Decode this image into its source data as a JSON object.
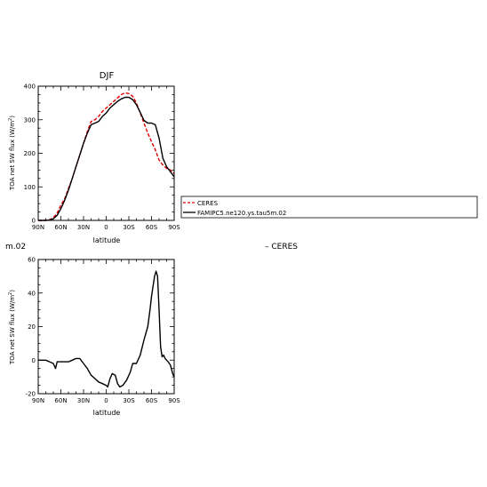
{
  "panel_top": {
    "title": "DJF",
    "xlabel": "latitude",
    "ylabel_main": "TOA net SW flux (W/m",
    "ylabel_sup": "2",
    "ylabel_end": ")"
  },
  "panel_bottom": {
    "corner_text": "m.02",
    "xlabel": "latitude",
    "ylabel_main": "TOA net SW flux (W/m",
    "ylabel_sup": "2",
    "ylabel_end": ")"
  },
  "legend": {
    "entries": [
      "CERES",
      "FAMIPC5.ne120.ys.tau5m.02"
    ]
  },
  "stray_legend_text": "– CERES",
  "colors": {
    "ceres": "#e00000",
    "model": "#000000"
  },
  "chart_data": [
    {
      "type": "line",
      "title": "DJF",
      "xlabel": "latitude",
      "ylabel": "TOA net SW flux (W/m2)",
      "xlim": [
        -90,
        90
      ],
      "ylim": [
        0,
        400
      ],
      "x_ticks": [
        -90,
        -60,
        -30,
        0,
        30,
        60,
        90
      ],
      "x_tick_labels": [
        "90N",
        "60N",
        "30N",
        "0",
        "30S",
        "60S",
        "90S"
      ],
      "y_ticks": [
        0,
        100,
        200,
        300,
        400
      ],
      "y_tick_labels": [
        "0",
        "100",
        "200",
        "300",
        "400"
      ],
      "legend_position": "right",
      "series": [
        {
          "name": "CERES",
          "style": "dashed",
          "x": [
            -90,
            -80,
            -75,
            -70,
            -65,
            -60,
            -55,
            -50,
            -45,
            -40,
            -35,
            -30,
            -25,
            -20,
            -15,
            -10,
            -5,
            0,
            5,
            10,
            15,
            20,
            25,
            30,
            35,
            40,
            45,
            50,
            55,
            60,
            65,
            70,
            75,
            80,
            85,
            90
          ],
          "values": [
            0,
            0,
            2,
            8,
            22,
            45,
            65,
            95,
            125,
            160,
            195,
            230,
            265,
            295,
            300,
            310,
            325,
            335,
            345,
            355,
            365,
            375,
            380,
            378,
            370,
            350,
            320,
            290,
            260,
            235,
            210,
            180,
            165,
            155,
            150,
            140
          ]
        },
        {
          "name": "FAMIPC5.ne120.ys.tau5m.02",
          "style": "solid",
          "x": [
            -90,
            -80,
            -75,
            -70,
            -65,
            -60,
            -55,
            -50,
            -45,
            -40,
            -35,
            -30,
            -25,
            -20,
            -15,
            -10,
            -5,
            0,
            5,
            10,
            15,
            20,
            25,
            30,
            35,
            40,
            45,
            50,
            55,
            60,
            65,
            70,
            75,
            80,
            85,
            90
          ],
          "values": [
            0,
            0,
            1,
            5,
            15,
            35,
            60,
            90,
            125,
            160,
            195,
            230,
            260,
            285,
            290,
            295,
            310,
            320,
            335,
            345,
            355,
            362,
            367,
            367,
            360,
            345,
            322,
            298,
            290,
            290,
            285,
            245,
            185,
            160,
            145,
            130
          ]
        }
      ]
    },
    {
      "type": "line",
      "xlabel": "latitude",
      "ylabel": "TOA net SW flux (W/m2)",
      "xlim": [
        -90,
        90
      ],
      "ylim": [
        -20,
        60
      ],
      "x_ticks": [
        -90,
        -60,
        -30,
        0,
        30,
        60,
        90
      ],
      "x_tick_labels": [
        "90N",
        "60N",
        "30N",
        "0",
        "30S",
        "60S",
        "90S"
      ],
      "y_ticks": [
        -20,
        0,
        20,
        40,
        60
      ],
      "y_tick_labels": [
        "-20",
        "0",
        "20",
        "40",
        "60"
      ],
      "series": [
        {
          "style": "solid",
          "x": [
            -90,
            -80,
            -75,
            -70,
            -67,
            -65,
            -62,
            -55,
            -50,
            -45,
            -40,
            -35,
            -30,
            -25,
            -20,
            -15,
            -10,
            -5,
            0,
            2,
            5,
            8,
            12,
            15,
            18,
            22,
            27,
            32,
            35,
            40,
            45,
            50,
            55,
            58,
            60,
            62,
            64,
            66,
            68,
            70,
            72,
            74,
            76,
            78,
            80,
            82,
            85,
            88,
            90
          ],
          "values": [
            0,
            0,
            -1,
            -2,
            -5,
            -1,
            -1,
            -1,
            -1,
            0,
            1,
            1,
            -2,
            -5,
            -9,
            -11,
            -13,
            -14,
            -15,
            -16,
            -11,
            -8,
            -9,
            -14,
            -16,
            -15,
            -12,
            -7,
            -2,
            -2,
            3,
            12,
            20,
            30,
            38,
            44,
            50,
            53,
            50,
            30,
            8,
            2,
            3,
            1,
            0,
            -1,
            -3,
            -8,
            -10
          ]
        }
      ]
    }
  ]
}
